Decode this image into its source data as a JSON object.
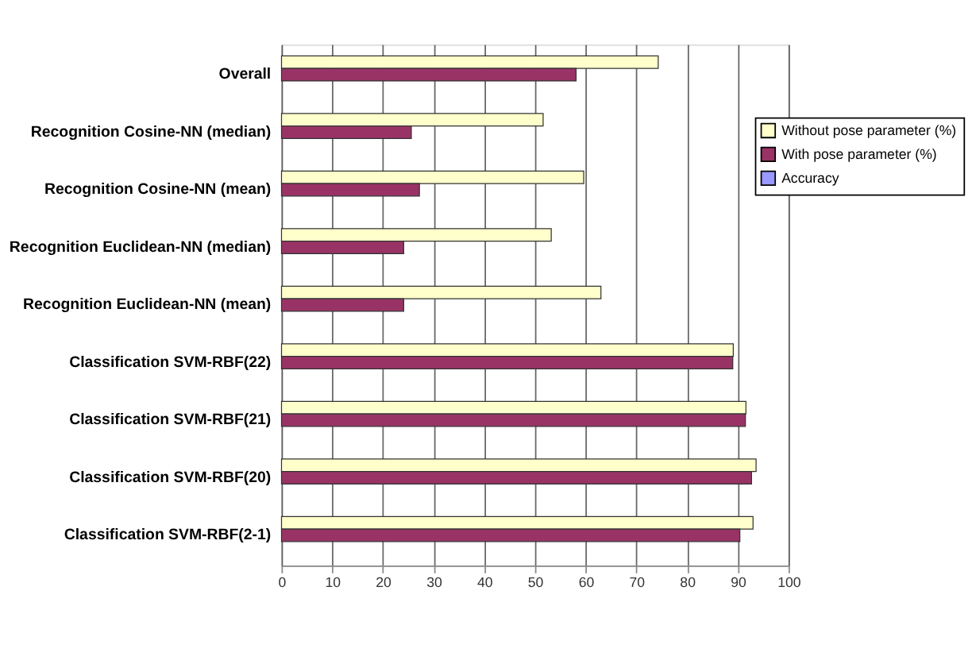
{
  "chart_data": {
    "type": "bar",
    "orientation": "horizontal",
    "categories": [
      "Overall",
      "Recognition Cosine-NN (median)",
      "Recognition Cosine-NN (mean)",
      "Recognition Euclidean-NN (median)",
      "Recognition Euclidean-NN (mean)",
      "Classification SVM-RBF(22)",
      "Classification SVM-RBF(21)",
      "Classification SVM-RBF(20)",
      "Classification SVM-RBF(2-1)"
    ],
    "series": [
      {
        "name": "Without pose parameter (%)",
        "color": "#ffffcc",
        "values": [
          74.3,
          51.6,
          59.6,
          53.2,
          63.0,
          89.1,
          91.6,
          93.6,
          93.0
        ]
      },
      {
        "name": "With pose parameter (%)",
        "color": "#993366",
        "values": [
          58.1,
          25.6,
          27.2,
          24.1,
          24.1,
          89.0,
          91.5,
          92.7,
          90.4
        ]
      },
      {
        "name": "Accuracy",
        "color": "#9999ff",
        "values": [
          null,
          null,
          null,
          null,
          null,
          null,
          null,
          null,
          null
        ]
      }
    ],
    "xlim": [
      0,
      100
    ],
    "xticks": [
      0,
      10,
      20,
      30,
      40,
      50,
      60,
      70,
      80,
      90,
      100
    ],
    "grid": "x",
    "legend": "top right"
  }
}
